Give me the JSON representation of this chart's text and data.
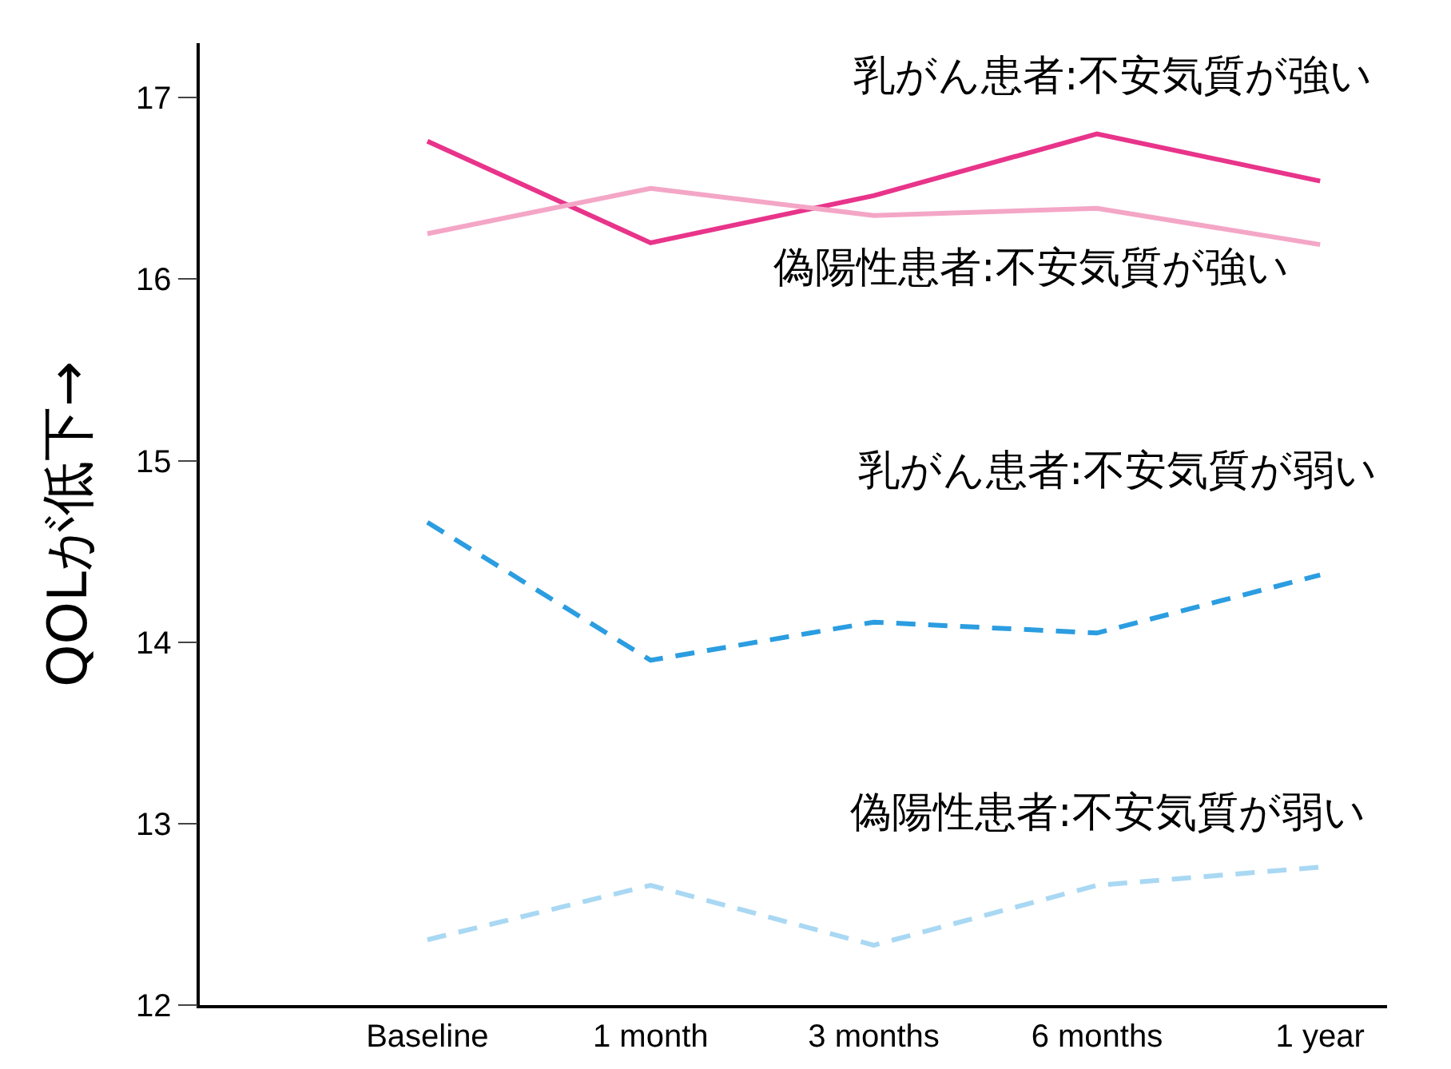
{
  "chart_data": {
    "type": "line",
    "ylabel": "QOLが低下→",
    "categories": [
      "Baseline",
      "1 month",
      "3 months",
      "6 months",
      "1 year"
    ],
    "series": [
      {
        "name": "乳がん患者:不安気質が強い",
        "color": "#e8348a",
        "line_style": "solid",
        "values": [
          16.76,
          16.2,
          16.46,
          16.8,
          16.54
        ]
      },
      {
        "name": "偽陽性患者:不安気質が強い",
        "color": "#f4a6c6",
        "line_style": "solid",
        "values": [
          16.25,
          16.5,
          16.35,
          16.39,
          16.19
        ]
      },
      {
        "name": "乳がん患者:不安気質が弱い",
        "color": "#2b9de0",
        "line_style": "dashed",
        "values": [
          14.66,
          13.9,
          14.11,
          14.05,
          14.37
        ]
      },
      {
        "name": "偽陽性患者:不安気質が弱い",
        "color": "#a9d8f3",
        "line_style": "dashed",
        "values": [
          12.36,
          12.66,
          12.33,
          12.66,
          12.76
        ]
      }
    ],
    "ylim": [
      12,
      17.3
    ],
    "yticks": [
      12,
      13,
      14,
      15,
      16,
      17
    ],
    "grid": false,
    "legend": false,
    "marker": "none"
  }
}
